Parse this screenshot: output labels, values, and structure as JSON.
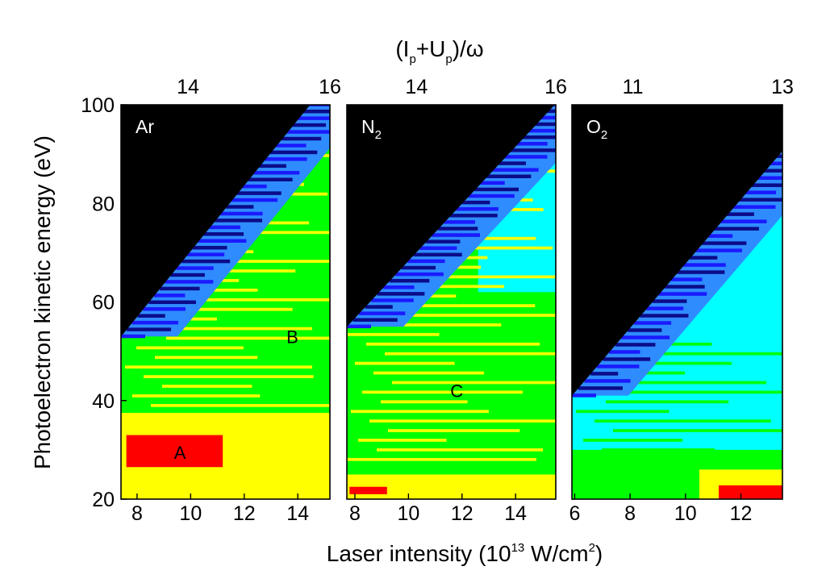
{
  "colors": {
    "black": "#000000",
    "darkblue": "#0b0b8a",
    "blue": "#1a1aff",
    "skyblue": "#2f8cff",
    "cyan": "#00ffff",
    "green": "#00ff00",
    "yellow": "#ffff00",
    "red": "#ff0000"
  },
  "chart_data": {
    "type": "heatmap",
    "xlabel": "Laser intensity (10",
    "xlabel_exp": "13",
    "xlabel_tail": " W/cm",
    "xlabel_sq": "2",
    "xlabel_close": ")",
    "ylabel": "Photoelectron kinetic energy (eV)",
    "top_label": {
      "open": "(I",
      "p": "p",
      "plus": "+U",
      "up": "p",
      "close": ")/ω"
    },
    "ylim": [
      20,
      100
    ],
    "yticks": [
      "20",
      "40",
      "60",
      "80",
      "100"
    ],
    "panels": [
      {
        "label": "Ar",
        "sub": "",
        "xlim": [
          7.4,
          15.2
        ],
        "xticks": [
          {
            "v": 8,
            "t": "8"
          },
          {
            "v": 10,
            "t": "10"
          },
          {
            "v": 12,
            "t": "12"
          },
          {
            "v": 14,
            "t": "14"
          }
        ],
        "top_ticks": [
          {
            "v": 9.9,
            "t": "14"
          },
          {
            "v": 15.2,
            "t": "16"
          }
        ],
        "edge": [
          [
            7.4,
            53
          ],
          [
            14.4,
            100
          ]
        ],
        "annotations": [
          {
            "t": "A",
            "x": 9.6,
            "y": 29.5
          },
          {
            "t": "B",
            "x": 13.8,
            "y": 53
          }
        ],
        "bg": "green",
        "regions": [
          {
            "c": "yellow",
            "x0": 7.4,
            "x1": 15.2,
            "y0": 20,
            "y1": 37.5
          },
          {
            "c": "red",
            "x0": 7.6,
            "x1": 11.2,
            "y0": 26.5,
            "y1": 33
          }
        ],
        "stripe_color": "yellow",
        "stripe_y0": 37,
        "stripe_y1": 100,
        "stripe_step": 1.95
      },
      {
        "label": "N",
        "sub": "2",
        "xlim": [
          7.7,
          15.5
        ],
        "xticks": [
          {
            "v": 8,
            "t": "8"
          },
          {
            "v": 10,
            "t": "10"
          },
          {
            "v": 12,
            "t": "12"
          },
          {
            "v": 14,
            "t": "14"
          }
        ],
        "top_ticks": [
          {
            "v": 10.3,
            "t": "14"
          },
          {
            "v": 15.5,
            "t": "16"
          }
        ],
        "edge": [
          [
            7.7,
            55
          ],
          [
            15.4,
            100
          ]
        ],
        "annotations": [
          {
            "t": "C",
            "x": 11.8,
            "y": 42
          }
        ],
        "bg": "green",
        "regions": [
          {
            "c": "cyan",
            "x0": 12.6,
            "x1": 15.5,
            "y0": 62,
            "y1": 100
          },
          {
            "c": "yellow",
            "x0": 7.7,
            "x1": 15.5,
            "y0": 20,
            "y1": 25
          },
          {
            "c": "red",
            "x0": 7.8,
            "x1": 9.2,
            "y0": 21,
            "y1": 22.5
          }
        ],
        "stripe_color": "yellow",
        "stripe_y0": 28,
        "stripe_y1": 92,
        "stripe_step": 1.95
      },
      {
        "label": "O",
        "sub": "2",
        "xlim": [
          5.9,
          13.5
        ],
        "xticks": [
          {
            "v": 6,
            "t": "6"
          },
          {
            "v": 8,
            "t": "8"
          },
          {
            "v": 10,
            "t": "10"
          },
          {
            "v": 12,
            "t": "12"
          }
        ],
        "top_ticks": [
          {
            "v": 8.1,
            "t": "11"
          },
          {
            "v": 13.5,
            "t": "13"
          }
        ],
        "edge": [
          [
            5.9,
            41
          ],
          [
            13.5,
            91
          ]
        ],
        "annotations": [],
        "bg": "cyan",
        "regions": [
          {
            "c": "green",
            "x0": 5.9,
            "x1": 13.5,
            "y0": 20,
            "y1": 30
          },
          {
            "c": "yellow",
            "x0": 10.5,
            "x1": 13.5,
            "y0": 20,
            "y1": 26
          },
          {
            "c": "red",
            "x0": 11.2,
            "x1": 13.5,
            "y0": 20,
            "y1": 22.8
          }
        ],
        "stripe_color": "green",
        "stripe_y0": 28,
        "stripe_y1": 52,
        "stripe_step": 1.95
      }
    ]
  }
}
